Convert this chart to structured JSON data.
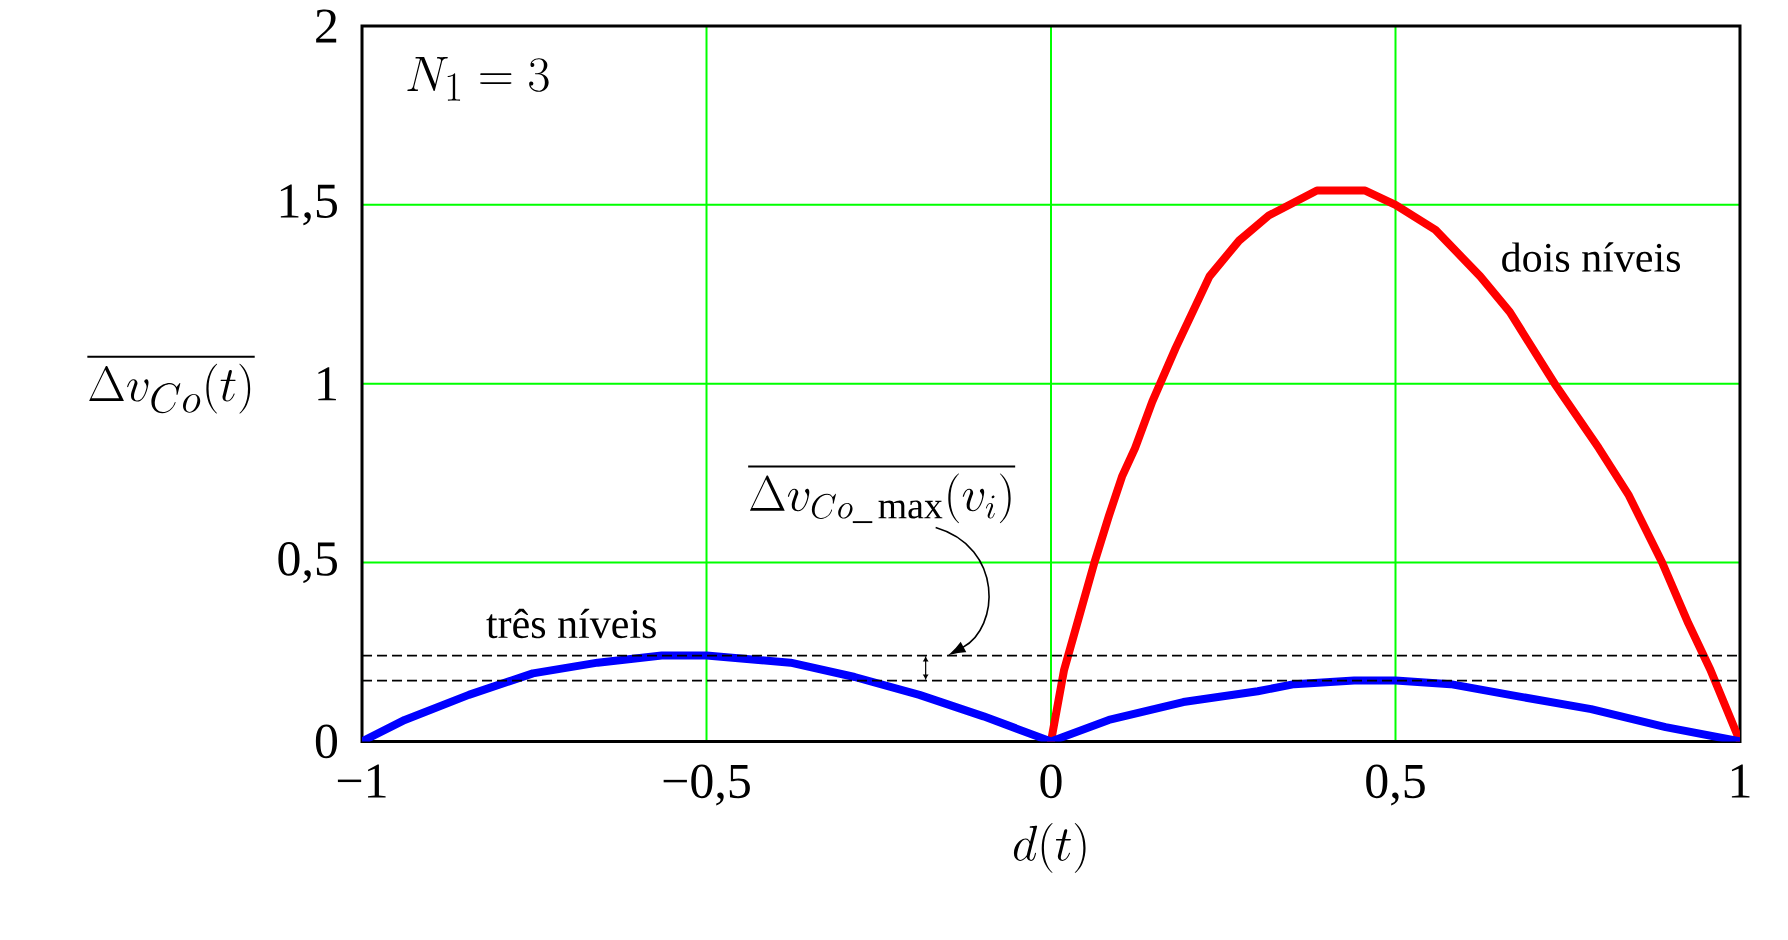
{
  "chart_data": {
    "type": "line",
    "xlabel": "d(t)",
    "ylabel": "\\overline{\\Delta v_{Co}(t)}",
    "xlim": [
      -1,
      1
    ],
    "ylim": [
      0,
      2
    ],
    "xticks": [
      {
        "value": -1,
        "label": "−1"
      },
      {
        "value": -0.5,
        "label": "−0,5"
      },
      0,
      {
        "value": 0.5,
        "label": "0,5"
      },
      1
    ],
    "yticks": [
      0,
      {
        "value": 0.5,
        "label": "0,5"
      },
      1,
      {
        "value": 1.5,
        "label": "1,5"
      },
      2
    ],
    "grid": true,
    "series": [
      {
        "name": "dois níveis",
        "color": "#ff0000",
        "x": [
          0,
          0.019,
          0.041,
          0.063,
          0.084,
          0.103,
          0.122,
          0.147,
          0.181,
          0.23,
          0.273,
          0.316,
          0.386,
          0.456,
          0.5,
          0.558,
          0.623,
          0.666,
          0.731,
          0.795,
          0.838,
          0.887,
          0.925,
          0.957,
          1
        ],
        "values": [
          0,
          0.2,
          0.35,
          0.5,
          0.63,
          0.74,
          0.82,
          0.95,
          1.1,
          1.3,
          1.4,
          1.47,
          1.54,
          1.54,
          1.5,
          1.43,
          1.3,
          1.2,
          1.0,
          0.82,
          0.69,
          0.5,
          0.33,
          0.2,
          0
        ]
      },
      {
        "name": "três níveis",
        "color": "#0000ff",
        "x": [
          -1,
          -0.938,
          -0.845,
          -0.752,
          -0.658,
          -0.565,
          -0.5,
          -0.378,
          -0.285,
          -0.191,
          -0.098,
          0,
          0.084,
          0.192,
          0.3,
          0.353,
          0.44,
          0.5,
          0.58,
          0.666,
          0.784,
          0.892,
          1
        ],
        "values": [
          0,
          0.06,
          0.13,
          0.19,
          0.22,
          0.24,
          0.24,
          0.22,
          0.18,
          0.13,
          0.07,
          0,
          0.06,
          0.11,
          0.14,
          0.16,
          0.17,
          0.17,
          0.16,
          0.13,
          0.09,
          0.04,
          0
        ]
      }
    ],
    "ref_lines": [
      {
        "axis": "y",
        "value": 0.24,
        "color": "#000000",
        "line_style": "dashed"
      },
      {
        "axis": "y",
        "value": 0.17,
        "color": "#000000",
        "line_style": "dashed"
      }
    ],
    "annotations": [
      "N_{1}=3",
      {
        "text": "\\overline{\\Delta v_{Co\\_\\max}(v_{i})}",
        "x": -0.15,
        "y": 0.24
      }
    ]
  }
}
